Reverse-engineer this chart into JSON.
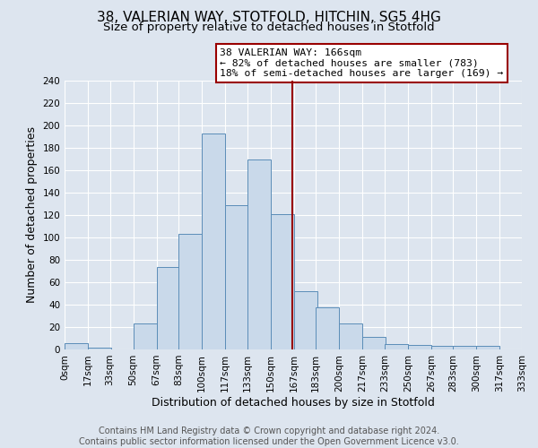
{
  "title": "38, VALERIAN WAY, STOTFOLD, HITCHIN, SG5 4HG",
  "subtitle": "Size of property relative to detached houses in Stotfold",
  "xlabel": "Distribution of detached houses by size in Stotfold",
  "ylabel": "Number of detached properties",
  "footer_line1": "Contains HM Land Registry data © Crown copyright and database right 2024.",
  "footer_line2": "Contains public sector information licensed under the Open Government Licence v3.0.",
  "bar_left_edges": [
    0,
    17,
    33,
    50,
    67,
    83,
    100,
    117,
    133,
    150,
    167,
    183,
    200,
    217,
    233,
    250,
    267,
    283,
    300,
    317
  ],
  "bar_heights": [
    6,
    2,
    0,
    23,
    74,
    103,
    193,
    129,
    170,
    121,
    52,
    38,
    23,
    11,
    5,
    4,
    3,
    3,
    3,
    0
  ],
  "bin_width": 17,
  "bar_face_color": "#c9d9ea",
  "bar_edge_color": "#5b8db8",
  "x_tick_labels": [
    "0sqm",
    "17sqm",
    "33sqm",
    "50sqm",
    "67sqm",
    "83sqm",
    "100sqm",
    "117sqm",
    "133sqm",
    "150sqm",
    "167sqm",
    "183sqm",
    "200sqm",
    "217sqm",
    "233sqm",
    "250sqm",
    "267sqm",
    "283sqm",
    "300sqm",
    "317sqm",
    "333sqm"
  ],
  "x_tick_positions": [
    0,
    17,
    33,
    50,
    67,
    83,
    100,
    117,
    133,
    150,
    167,
    183,
    200,
    217,
    233,
    250,
    267,
    283,
    300,
    317,
    333
  ],
  "ylim_max": 240,
  "yticks": [
    0,
    20,
    40,
    60,
    80,
    100,
    120,
    140,
    160,
    180,
    200,
    220,
    240
  ],
  "vline_x": 166,
  "vline_color": "#990000",
  "ann_title": "38 VALERIAN WAY: 166sqm",
  "ann_line1": "← 82% of detached houses are smaller (783)",
  "ann_line2": "18% of semi-detached houses are larger (169) →",
  "background_color": "#dde5ef",
  "grid_color": "#ffffff",
  "title_fontsize": 11,
  "subtitle_fontsize": 9.5,
  "axis_label_fontsize": 9,
  "tick_fontsize": 7.5,
  "footer_fontsize": 7
}
